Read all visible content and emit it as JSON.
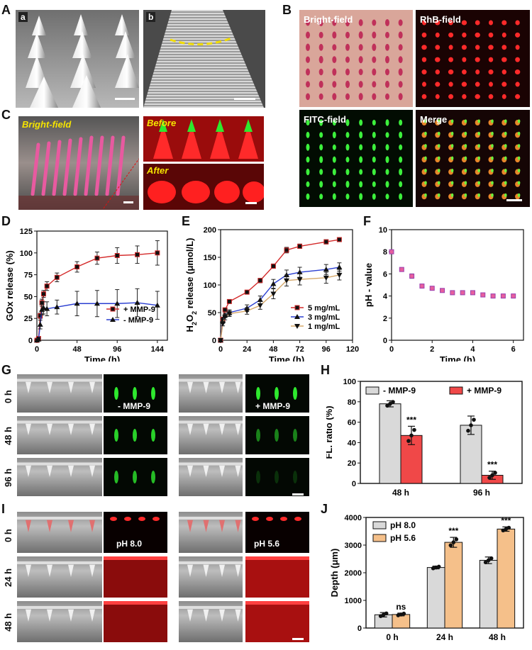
{
  "panels": {
    "A": {
      "label": "A",
      "sub_a": "a",
      "sub_b": "b"
    },
    "B": {
      "label": "B",
      "bright": "Bright-field",
      "rhb": "RhB-field",
      "fitc": "FITC-field",
      "merge": "Merge"
    },
    "C": {
      "label": "C",
      "bright": "Bright-field",
      "before": "Before",
      "after": "After"
    },
    "D": {
      "label": "D"
    },
    "E": {
      "label": "E"
    },
    "F": {
      "label": "F"
    },
    "G": {
      "label": "G",
      "times": [
        "0 h",
        "48 h",
        "96 h"
      ],
      "minus": "- MMP-9",
      "plus": "+ MMP-9"
    },
    "H": {
      "label": "H"
    },
    "I": {
      "label": "I",
      "times": [
        "0 h",
        "24 h",
        "48 h"
      ],
      "ph8": "pH 8.0",
      "ph56": "pH 5.6"
    },
    "J": {
      "label": "J"
    }
  },
  "colors": {
    "red": "#d42a2a",
    "blue": "#2b3fd1",
    "tan": "#d5a86a",
    "gray": "#d9d9d9",
    "orange": "#f5c08a",
    "purple": "#9b3fb0",
    "pink": "#e65f9d"
  },
  "chart_data": [
    {
      "id": "D",
      "type": "line",
      "xlabel": "Time (h)",
      "ylabel": "GOx release (%)",
      "xlim": [
        0,
        156
      ],
      "ylim": [
        0,
        125
      ],
      "xticks": [
        0,
        48,
        96,
        144
      ],
      "yticks": [
        0,
        25,
        50,
        75,
        100,
        125
      ],
      "series": [
        {
          "name": "+ MMP-9",
          "marker": "square",
          "color": "#d42a2a",
          "x": [
            0,
            2,
            4,
            6,
            8,
            12,
            24,
            48,
            72,
            96,
            120,
            144
          ],
          "y": [
            0,
            2,
            28,
            43,
            53,
            62,
            72,
            84,
            94,
            97,
            98,
            100
          ],
          "err": [
            0,
            1,
            3,
            4,
            4,
            5,
            5,
            6,
            7,
            9,
            10,
            14
          ]
        },
        {
          "name": "- MMP-9",
          "marker": "triangle",
          "color": "#2b3fd1",
          "x": [
            0,
            2,
            4,
            6,
            8,
            12,
            24,
            48,
            72,
            96,
            120,
            144
          ],
          "y": [
            0,
            1,
            18,
            35,
            37,
            36,
            38,
            42,
            42,
            42,
            43,
            40
          ],
          "err": [
            0,
            1,
            5,
            6,
            7,
            8,
            8,
            14,
            15,
            16,
            16,
            16
          ]
        }
      ]
    },
    {
      "id": "E",
      "type": "line",
      "xlabel": "Time (h)",
      "ylabel": "H2O2 release (μmol/L)",
      "xlim": [
        0,
        120
      ],
      "ylim": [
        0,
        200
      ],
      "xticks": [
        0,
        24,
        48,
        72,
        96,
        120
      ],
      "yticks": [
        0,
        50,
        100,
        150,
        200
      ],
      "series": [
        {
          "name": "5 mg/mL",
          "marker": "square",
          "color": "#d42a2a",
          "x": [
            0,
            2,
            4,
            8,
            24,
            36,
            48,
            60,
            72,
            96,
            108
          ],
          "y": [
            0,
            38,
            55,
            70,
            87,
            108,
            134,
            163,
            170,
            178,
            182
          ],
          "err": [
            0,
            3,
            3,
            3,
            3,
            4,
            4,
            5,
            4,
            4,
            3
          ]
        },
        {
          "name": "3 mg/mL",
          "marker": "triangle",
          "color": "#2b3fd1",
          "x": [
            0,
            2,
            4,
            8,
            24,
            36,
            48,
            60,
            72,
            96,
            108
          ],
          "y": [
            0,
            35,
            45,
            50,
            58,
            73,
            102,
            118,
            123,
            128,
            132
          ],
          "err": [
            0,
            4,
            4,
            5,
            6,
            7,
            8,
            9,
            9,
            9,
            8
          ]
        },
        {
          "name": "1 mg/mL",
          "marker": "triangle-down",
          "color": "#d5a86a",
          "x": [
            0,
            2,
            4,
            8,
            24,
            36,
            48,
            60,
            72,
            96,
            108
          ],
          "y": [
            0,
            30,
            42,
            48,
            53,
            63,
            84,
            108,
            110,
            113,
            118
          ],
          "err": [
            0,
            4,
            5,
            5,
            6,
            7,
            9,
            10,
            10,
            10,
            9
          ]
        }
      ]
    },
    {
      "id": "F",
      "type": "scatter",
      "xlabel": "Time (h)",
      "ylabel": "pH - value",
      "xlim": [
        0,
        6.5
      ],
      "ylim": [
        0,
        10
      ],
      "xticks": [
        0,
        2,
        4,
        6
      ],
      "yticks": [
        0,
        2,
        4,
        6,
        8,
        10
      ],
      "series": [
        {
          "name": "pH",
          "marker": "square",
          "color": "#9b3fb0",
          "x": [
            0,
            0.5,
            1,
            1.5,
            2,
            2.5,
            3,
            3.5,
            4,
            4.5,
            5,
            5.5,
            6
          ],
          "y": [
            8.0,
            6.4,
            5.8,
            4.9,
            4.7,
            4.5,
            4.3,
            4.3,
            4.3,
            4.1,
            4.0,
            4.0,
            4.0
          ],
          "err": [
            0.05,
            0.15,
            0.2,
            0.15,
            0.1,
            0.1,
            0.1,
            0.1,
            0.1,
            0.1,
            0.1,
            0.1,
            0.15
          ]
        }
      ]
    },
    {
      "id": "H",
      "type": "bar",
      "xlabel": "",
      "ylabel": "FL. ratio (%)",
      "ylim": [
        0,
        100
      ],
      "yticks": [
        0,
        20,
        40,
        60,
        80,
        100
      ],
      "categories": [
        "48 h",
        "96 h"
      ],
      "series": [
        {
          "name": "- MMP-9",
          "color": "#d9d9d9",
          "values": [
            78,
            57
          ],
          "err": [
            3,
            9
          ],
          "sig": [
            "",
            ""
          ]
        },
        {
          "name": "+ MMP-9",
          "color": "#f04848",
          "values": [
            47,
            8
          ],
          "err": [
            9,
            4
          ],
          "sig": [
            "***",
            "***"
          ]
        }
      ]
    },
    {
      "id": "J",
      "type": "bar",
      "xlabel": "",
      "ylabel": "Depth (μm)",
      "ylim": [
        0,
        4000
      ],
      "yticks": [
        0,
        1000,
        2000,
        3000,
        4000
      ],
      "categories": [
        "0 h",
        "24  h",
        "48 h"
      ],
      "series": [
        {
          "name": "pH 8.0",
          "color": "#d9d9d9",
          "values": [
            480,
            2190,
            2450
          ],
          "err": [
            80,
            50,
            120
          ],
          "sig": [
            "",
            "",
            ""
          ]
        },
        {
          "name": "pH 5.6",
          "color": "#f5c08a",
          "values": [
            490,
            3100,
            3580
          ],
          "err": [
            50,
            180,
            80
          ],
          "sig": [
            "ns",
            "***",
            "***"
          ]
        }
      ]
    }
  ]
}
